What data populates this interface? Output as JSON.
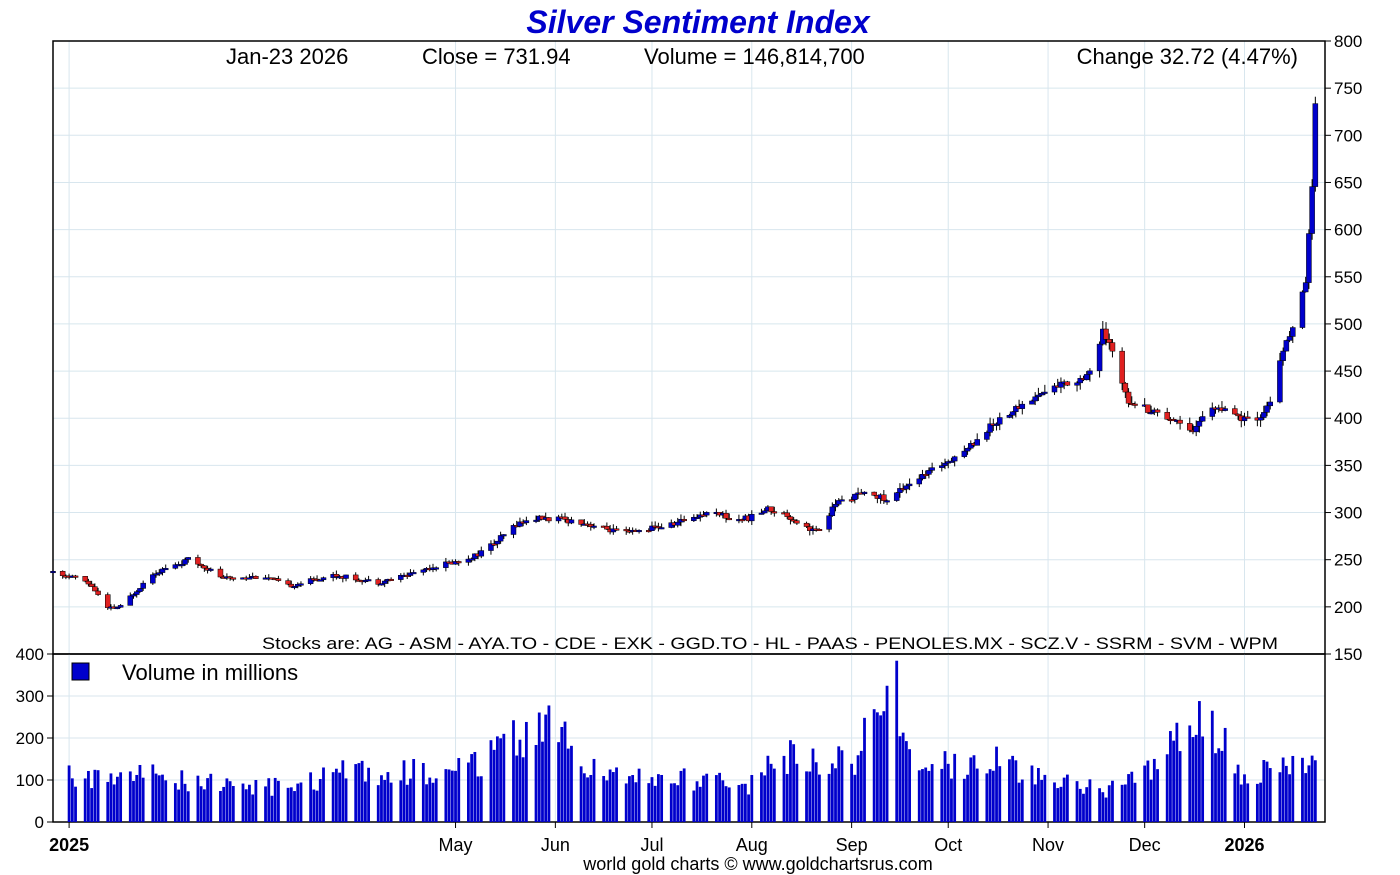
{
  "chart_data": [
    {
      "type": "candlestick",
      "title": "Silver Sentiment Index",
      "header": {
        "date": "Jan-23  2026",
        "close": "Close = 731.94",
        "volume": "Volume = 146,814,700",
        "change": "Change 32.72 (4.47%)"
      },
      "stocks_note": "Stocks are: AG - ASM - AYA.TO - CDE - EXK - GGD.TO - HL - PAAS - PENOLES.MX - SCZ.V - SSRM - SVM - WPM",
      "footer": "world gold charts © www.goldchartsrus.com",
      "ylim": [
        150,
        800
      ],
      "y_ticks": [
        150,
        200,
        250,
        300,
        350,
        400,
        450,
        500,
        550,
        600,
        650,
        700,
        750,
        800
      ],
      "x_range": [
        "2024-12-27",
        "2026-01-26"
      ],
      "x_ticks": [
        {
          "date": "2025-01-01",
          "label": "2025",
          "bold": true
        },
        {
          "date": "2025-05-01",
          "label": "May",
          "bold": false
        },
        {
          "date": "2025-06-01",
          "label": "Jun",
          "bold": false
        },
        {
          "date": "2025-07-01",
          "label": "Jul",
          "bold": false
        },
        {
          "date": "2025-08-01",
          "label": "Aug",
          "bold": false
        },
        {
          "date": "2025-09-01",
          "label": "Sep",
          "bold": false
        },
        {
          "date": "2025-10-01",
          "label": "Oct",
          "bold": false
        },
        {
          "date": "2025-11-01",
          "label": "Nov",
          "bold": false
        },
        {
          "date": "2025-12-01",
          "label": "Dec",
          "bold": false
        },
        {
          "date": "2026-01-01",
          "label": "2026",
          "bold": true
        }
      ],
      "up_color": "#0000cc",
      "down_color": "#e02020",
      "grid": true,
      "price_series_approx": [
        [
          "2024-12-27",
          237
        ],
        [
          "2025-01-03",
          232
        ],
        [
          "2025-01-08",
          222
        ],
        [
          "2025-01-13",
          198
        ],
        [
          "2025-01-17",
          200
        ],
        [
          "2025-01-22",
          218
        ],
        [
          "2025-01-27",
          236
        ],
        [
          "2025-02-03",
          244
        ],
        [
          "2025-02-07",
          250
        ],
        [
          "2025-02-12",
          243
        ],
        [
          "2025-02-18",
          230
        ],
        [
          "2025-02-24",
          232
        ],
        [
          "2025-03-03",
          232
        ],
        [
          "2025-03-10",
          222
        ],
        [
          "2025-03-17",
          228
        ],
        [
          "2025-03-24",
          234
        ],
        [
          "2025-03-31",
          230
        ],
        [
          "2025-04-07",
          226
        ],
        [
          "2025-04-14",
          232
        ],
        [
          "2025-04-21",
          240
        ],
        [
          "2025-04-28",
          246
        ],
        [
          "2025-05-02",
          248
        ],
        [
          "2025-05-08",
          256
        ],
        [
          "2025-05-14",
          270
        ],
        [
          "2025-05-20",
          288
        ],
        [
          "2025-05-26",
          294
        ],
        [
          "2025-06-02",
          293
        ],
        [
          "2025-06-09",
          290
        ],
        [
          "2025-06-16",
          283
        ],
        [
          "2025-06-23",
          278
        ],
        [
          "2025-06-30",
          283
        ],
        [
          "2025-07-07",
          287
        ],
        [
          "2025-07-14",
          296
        ],
        [
          "2025-07-21",
          302
        ],
        [
          "2025-07-25",
          293
        ],
        [
          "2025-07-31",
          294
        ],
        [
          "2025-08-06",
          304
        ],
        [
          "2025-08-12",
          297
        ],
        [
          "2025-08-18",
          284
        ],
        [
          "2025-08-22",
          280
        ],
        [
          "2025-08-27",
          310
        ],
        [
          "2025-09-02",
          318
        ],
        [
          "2025-09-08",
          320
        ],
        [
          "2025-09-12",
          312
        ],
        [
          "2025-09-18",
          330
        ],
        [
          "2025-09-24",
          340
        ],
        [
          "2025-10-01",
          356
        ],
        [
          "2025-10-07",
          368
        ],
        [
          "2025-10-13",
          388
        ],
        [
          "2025-10-17",
          400
        ],
        [
          "2025-10-23",
          412
        ],
        [
          "2025-10-29",
          425
        ],
        [
          "2025-11-04",
          435
        ],
        [
          "2025-11-10",
          440
        ],
        [
          "2025-11-14",
          450
        ],
        [
          "2025-11-18",
          490
        ],
        [
          "2025-11-21",
          470
        ],
        [
          "2025-11-26",
          420
        ],
        [
          "2025-12-02",
          410
        ],
        [
          "2025-12-08",
          402
        ],
        [
          "2025-12-12",
          396
        ],
        [
          "2025-12-16",
          388
        ],
        [
          "2025-12-22",
          413
        ],
        [
          "2025-12-30",
          400
        ],
        [
          "2026-01-05",
          395
        ],
        [
          "2026-01-09",
          420
        ],
        [
          "2026-01-13",
          470
        ],
        [
          "2026-01-16",
          500
        ],
        [
          "2026-01-20",
          540
        ],
        [
          "2026-01-22",
          650
        ],
        [
          "2026-01-23",
          731.94
        ]
      ]
    },
    {
      "type": "bar",
      "legend_label": "Volume in millions",
      "ylim": [
        0,
        400
      ],
      "y_ticks": [
        0,
        100,
        200,
        300,
        400
      ],
      "color": "#0000cc",
      "volume_approx": [
        [
          "2025-01-01",
          110
        ],
        [
          "2025-02-01",
          110
        ],
        [
          "2025-03-01",
          80
        ],
        [
          "2025-04-01",
          125
        ],
        [
          "2025-05-01",
          120
        ],
        [
          "2025-06-01",
          250
        ],
        [
          "2025-06-10",
          130
        ],
        [
          "2025-07-01",
          110
        ],
        [
          "2025-08-01",
          90
        ],
        [
          "2025-08-06",
          170
        ],
        [
          "2025-09-01",
          140
        ],
        [
          "2025-09-14",
          350
        ],
        [
          "2025-09-20",
          140
        ],
        [
          "2025-10-01",
          140
        ],
        [
          "2025-10-20",
          145
        ],
        [
          "2025-11-01",
          100
        ],
        [
          "2025-11-20",
          80
        ],
        [
          "2025-12-01",
          110
        ],
        [
          "2025-12-20",
          265
        ],
        [
          "2026-01-01",
          115
        ],
        [
          "2026-01-23",
          147
        ]
      ]
    }
  ]
}
